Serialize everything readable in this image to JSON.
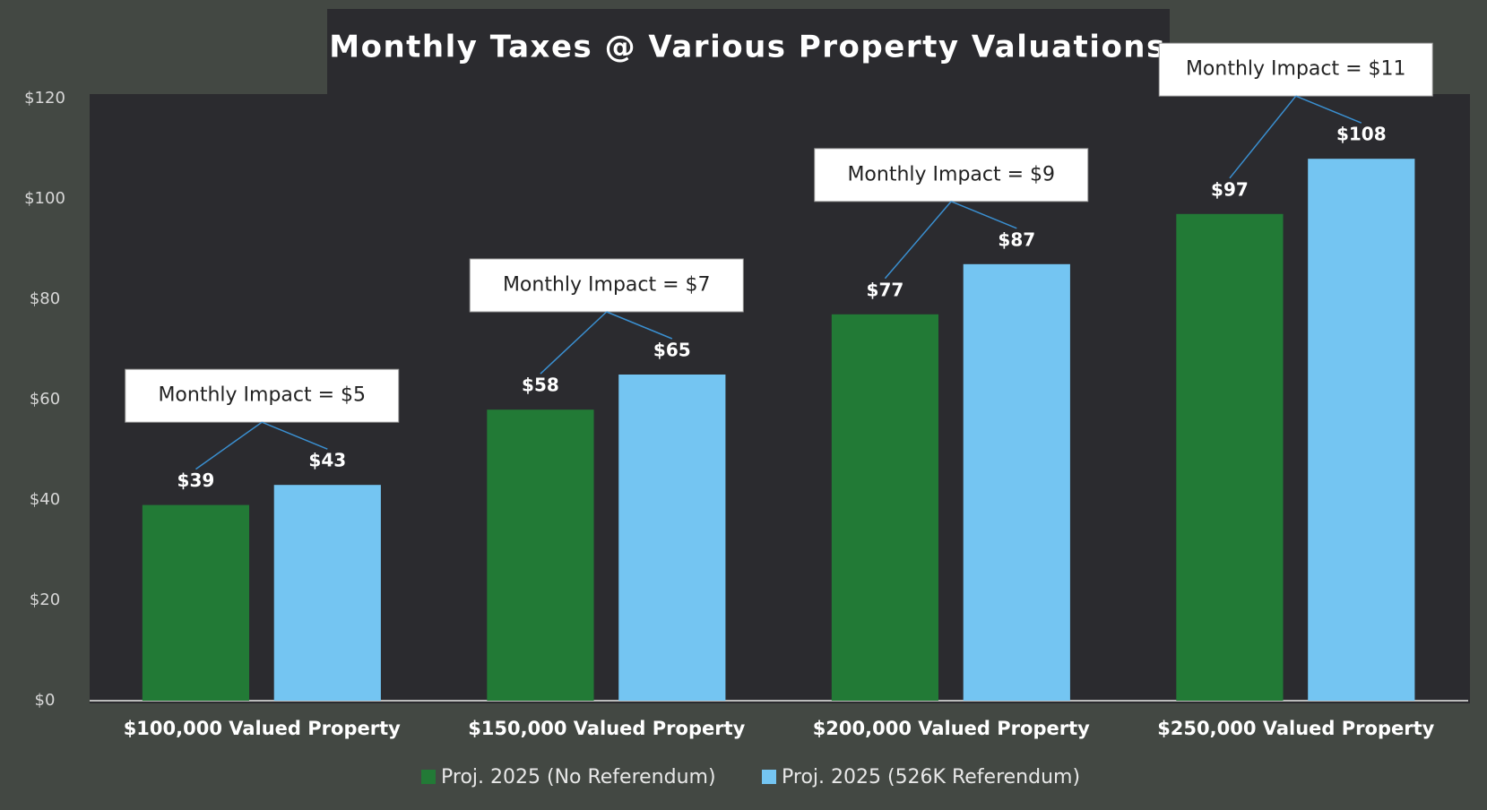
{
  "chart_data": {
    "type": "bar",
    "title": "Monthly Taxes @ Various Property Valuations",
    "categories": [
      "$100,000 Valued Property",
      "$150,000 Valued Property",
      "$200,000 Valued Property",
      "$250,000 Valued Property"
    ],
    "series": [
      {
        "name": "Proj. 2025 (No Referendum)",
        "color": "#227a36",
        "values": [
          39,
          58,
          77,
          97
        ],
        "value_labels": [
          "$39",
          "$58",
          "$77",
          "$97"
        ]
      },
      {
        "name": "Proj. 2025 (526K Referendum)",
        "color": "#74c5f2",
        "values": [
          43,
          65,
          87,
          108
        ],
        "value_labels": [
          "$43",
          "$65",
          "$87",
          "$108"
        ]
      }
    ],
    "annotations": [
      "Monthly Impact = $5",
      "Monthly Impact = $7",
      "Monthly Impact = $9",
      "Monthly Impact = $11"
    ],
    "ylim": [
      0,
      120
    ],
    "yticks": [
      {
        "value": 0,
        "label": "$0"
      },
      {
        "value": 20,
        "label": "$20"
      },
      {
        "value": 40,
        "label": "$40"
      },
      {
        "value": 60,
        "label": "$60"
      },
      {
        "value": 80,
        "label": "$80"
      },
      {
        "value": 100,
        "label": "$100"
      },
      {
        "value": 120,
        "label": "$120"
      }
    ],
    "grid": false,
    "legend": "bottom"
  }
}
